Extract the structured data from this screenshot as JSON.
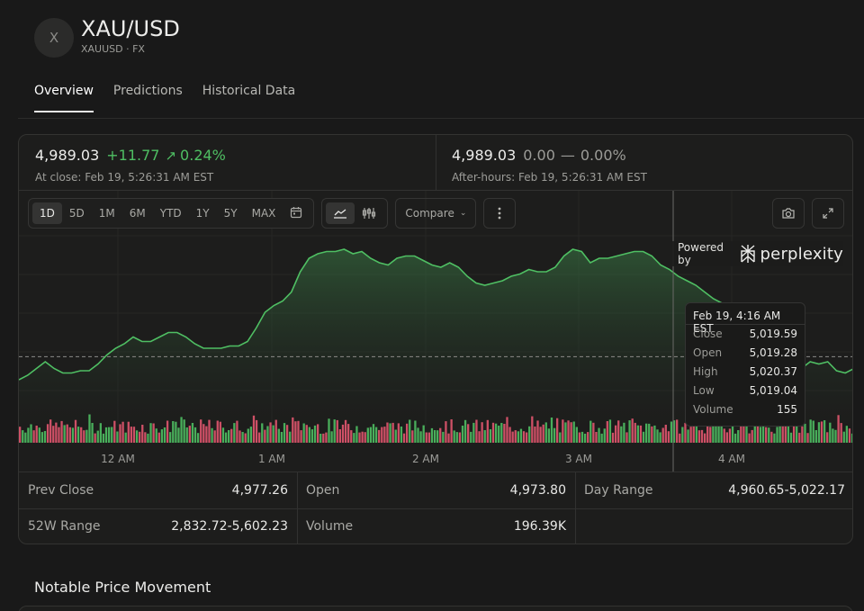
{
  "header": {
    "logo_letter": "X",
    "title": "XAU/USD",
    "subtitle": "XAUUSD · FX"
  },
  "tabs": [
    {
      "label": "Overview",
      "active": true
    },
    {
      "label": "Predictions",
      "active": false
    },
    {
      "label": "Historical Data",
      "active": false
    }
  ],
  "quote": {
    "close_price": "4,989.03",
    "close_change": "+11.77",
    "close_change_pct": "0.24%",
    "close_time": "At close: Feb 19, 5:26:31 AM EST",
    "after_price": "4,989.03",
    "after_change": "0.00",
    "after_change_pct": "0.00%",
    "after_time": "After-hours: Feb 19, 5:26:31 AM EST"
  },
  "toolbar": {
    "ranges": [
      "1D",
      "5D",
      "1M",
      "6M",
      "YTD",
      "1Y",
      "5Y",
      "MAX"
    ],
    "active_range": "1D",
    "compare_label": "Compare"
  },
  "powered": {
    "label": "Powered by",
    "brand": "perplexity"
  },
  "tooltip": {
    "title": "Feb 19, 4:16 AM EST",
    "rows": [
      {
        "label": "Close",
        "value": "5,019.59"
      },
      {
        "label": "Open",
        "value": "5,019.28"
      },
      {
        "label": "High",
        "value": "5,020.37"
      },
      {
        "label": "Low",
        "value": "5,019.04"
      },
      {
        "label": "Volume",
        "value": "155"
      }
    ]
  },
  "chart_data": {
    "type": "area",
    "x_ticks": [
      "12 AM",
      "1 AM",
      "2 AM",
      "3 AM",
      "4 AM"
    ],
    "prev_close": 4977.26,
    "ylim": [
      4955,
      5035
    ],
    "series": [
      {
        "values": [
          4967,
          4969,
          4972,
          4975,
          4972,
          4970,
          4970,
          4971,
          4971,
          4974,
          4978,
          4981,
          4983,
          4986,
          4984,
          4984,
          4986,
          4988,
          4988,
          4986,
          4983,
          4981,
          4981,
          4981,
          4982,
          4982,
          4984,
          4990,
          4997,
          5000,
          5002,
          5006,
          5015,
          5021,
          5023,
          5024,
          5024,
          5025,
          5023,
          5024,
          5021,
          5019,
          5018,
          5021,
          5022,
          5022,
          5020,
          5018,
          5017,
          5019,
          5017,
          5013,
          5010,
          5009,
          5010,
          5011,
          5013,
          5014,
          5016,
          5015,
          5015,
          5017,
          5022,
          5025,
          5024,
          5019,
          5021,
          5021,
          5022,
          5023,
          5024,
          5024,
          5022,
          5018,
          5016,
          5013,
          5011,
          5009,
          5006,
          5003,
          5001,
          4998,
          4996,
          4995,
          4993,
          4987,
          4985,
          4984,
          4975,
          4972,
          4975,
          4974,
          4975,
          4971,
          4970,
          4972
        ]
      }
    ],
    "volume_colors": [
      "#4fbf63",
      "#e2566f"
    ]
  },
  "stats": {
    "prev_close_label": "Prev Close",
    "prev_close": "4,977.26",
    "open_label": "Open",
    "open": "4,973.80",
    "day_range_label": "Day Range",
    "day_range": "4,960.65-5,022.17",
    "w52_label": "52W Range",
    "w52": "2,832.72-5,602.23",
    "volume_label": "Volume",
    "volume": "196.39K"
  },
  "section": {
    "title": "Notable Price Movement"
  }
}
